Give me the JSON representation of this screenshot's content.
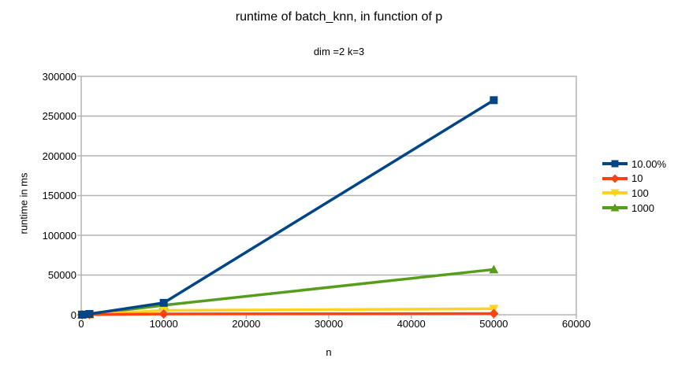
{
  "chart_data": {
    "type": "line",
    "title": "runtime of batch_knn, in function of p",
    "subtitle": "dim =2 k=3",
    "xlabel": "n",
    "ylabel": "runtime in ms",
    "xlim": [
      0,
      60000
    ],
    "ylim": [
      0,
      300000
    ],
    "xticks": [
      0,
      10000,
      20000,
      30000,
      40000,
      50000,
      60000
    ],
    "yticks": [
      0,
      50000,
      100000,
      150000,
      200000,
      250000,
      300000
    ],
    "grid": "horizontal",
    "legend_position": "right",
    "x": [
      100,
      1000,
      10000,
      50000
    ],
    "series": [
      {
        "name": "10.00%",
        "color": "#004586",
        "marker": "square",
        "values": [
          200,
          1000,
          15000,
          270000
        ]
      },
      {
        "name": "10",
        "color": "#ff420e",
        "marker": "diamond",
        "values": [
          50,
          200,
          1000,
          1500
        ]
      },
      {
        "name": "100",
        "color": "#ffd320",
        "marker": "triangle-down",
        "values": [
          100,
          300,
          5500,
          7500
        ]
      },
      {
        "name": "1000",
        "color": "#579d1c",
        "marker": "triangle-up",
        "values": [
          150,
          600,
          12000,
          57000
        ]
      }
    ]
  },
  "style_colors": {
    "axis_and_grid": "#b3b3b3",
    "text": "#000000",
    "background": "#ffffff"
  }
}
